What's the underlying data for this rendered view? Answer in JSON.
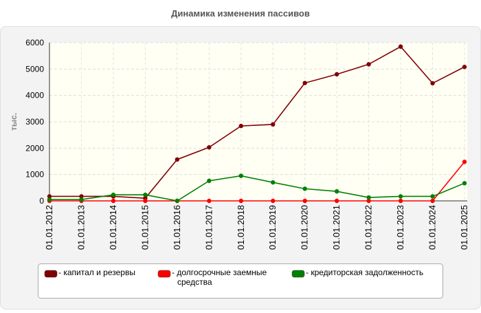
{
  "chart_data": {
    "type": "line",
    "title": "Динамика изменения пассивов",
    "y_label": "тыс.",
    "categories": [
      "01.01.2012",
      "01.01.2013",
      "01.01.2014",
      "01.01.2015",
      "01.01.2016",
      "01.01.2017",
      "01.01.2018",
      "01.01.2019",
      "01.01.2020",
      "01.01.2021",
      "01.01.2022",
      "01.01.2023",
      "01.01.2024",
      "01.01.2025"
    ],
    "series": [
      {
        "name": "капитал и резервы",
        "color": "#800000",
        "values": [
          170,
          170,
          170,
          100,
          1570,
          2030,
          2840,
          2900,
          4470,
          4800,
          5180,
          5850,
          4460,
          5080
        ]
      },
      {
        "name": "долгосрочные заемные средства",
        "color": "#ff0000",
        "values": [
          0,
          0,
          0,
          0,
          0,
          0,
          0,
          0,
          0,
          0,
          0,
          0,
          0,
          1480
        ]
      },
      {
        "name": "кредиторская задолженность",
        "color": "#008000",
        "values": [
          50,
          50,
          230,
          230,
          0,
          760,
          950,
          700,
          460,
          360,
          130,
          170,
          170,
          670
        ]
      }
    ],
    "ylim": [
      0,
      6000
    ],
    "yticks": [
      0,
      1000,
      2000,
      3000,
      4000,
      5000,
      6000
    ],
    "grid": true
  }
}
